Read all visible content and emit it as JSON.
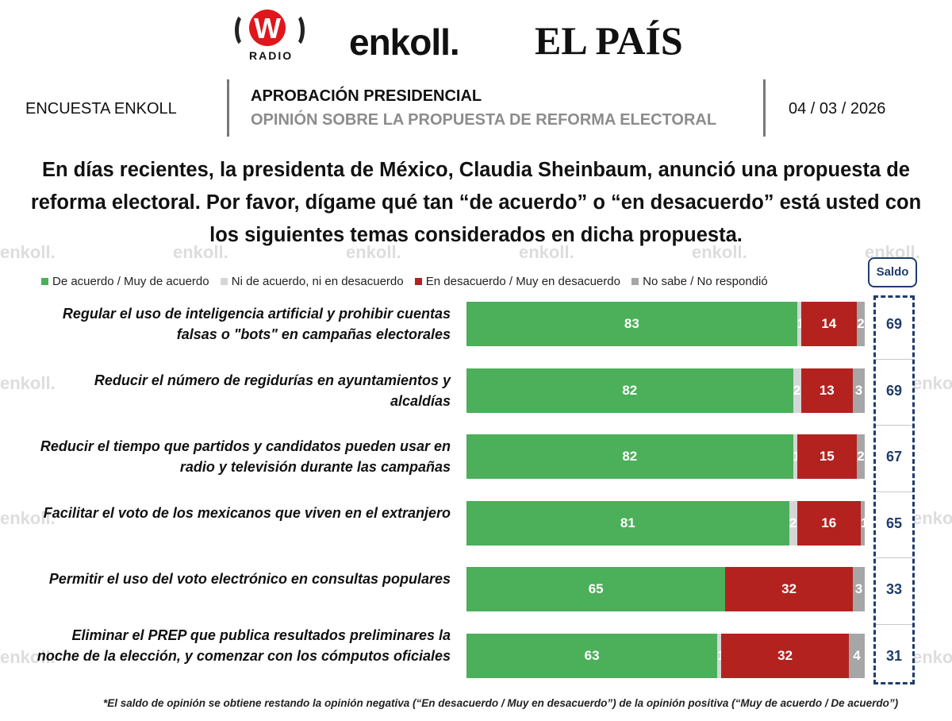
{
  "logos": {
    "w_letter": "W",
    "w_radio_text": "RADIO",
    "enkoll": "enkoll.",
    "el_pais": "EL PAÍS"
  },
  "header": {
    "survey": "ENCUESTA ENKOLL",
    "title": "APROBACIÓN PRESIDENCIAL",
    "subtitle": "OPINIÓN SOBRE LA PROPUESTA DE REFORMA ELECTORAL",
    "date": "04 / 03 / 2026"
  },
  "watermark_text": "enkoll.",
  "colors": {
    "agree": "#4caf5a",
    "neutral": "#d6d6d6",
    "disagree": "#b3221f",
    "nr": "#a6a6a6",
    "saldo": "#1f3c6d"
  },
  "chart_data": {
    "type": "bar",
    "orientation": "horizontal",
    "stacked": true,
    "title": "En días recientes, la presidenta de México, Claudia Sheinbaum, anunció una propuesta de reforma electoral. Por favor, dígame qué tan “de acuerdo” o “en desacuerdo” está usted con los siguientes temas considerados en dicha propuesta.",
    "legend_position": "top",
    "xlim": [
      0,
      100
    ],
    "categories": [
      "Regular el uso de inteligencia artificial y prohibir cuentas falsas o \"bots\" en campañas electorales",
      "Reducir el número de regidurías en ayuntamientos y alcaldías",
      "Reducir el tiempo que partidos y candidatos pueden usar en radio y televisión durante las campañas",
      "Facilitar el voto de los mexicanos que viven en el extranjero",
      "Permitir el uso del voto electrónico en consultas populares",
      "Eliminar el PREP que publica resultados preliminares la noche de la elección, y comenzar con los cómputos oficiales"
    ],
    "series": [
      {
        "name": "De acuerdo / Muy de acuerdo",
        "color_key": "agree",
        "values": [
          83,
          82,
          82,
          81,
          65,
          63
        ]
      },
      {
        "name": "Ni de acuerdo, ni en desacuerdo",
        "color_key": "neutral",
        "values": [
          1,
          2,
          1,
          2,
          null,
          1
        ]
      },
      {
        "name": "En desacuerdo / Muy en desacuerdo",
        "color_key": "disagree",
        "values": [
          14,
          13,
          15,
          16,
          32,
          32
        ]
      },
      {
        "name": "No sabe / No respondió",
        "color_key": "nr",
        "values": [
          2,
          3,
          2,
          1,
          3,
          4
        ]
      }
    ],
    "saldo_label": "Saldo",
    "saldo": [
      69,
      69,
      67,
      65,
      33,
      31
    ],
    "footnote": "*El saldo de opinión se obtiene restando la opinión negativa (“En desacuerdo / Muy en desacuerdo”) de la opinión positiva (“Muy de acuerdo / De acuerdo”)"
  }
}
